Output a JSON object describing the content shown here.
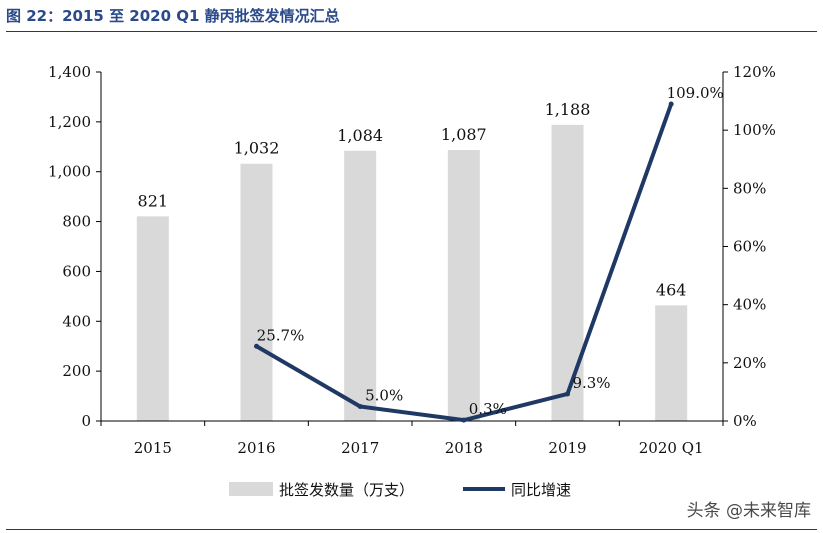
{
  "caption": "图 22：2015 至 2020 Q1 静丙批签发情况汇总",
  "watermark": "头条 @未来智库",
  "colors": {
    "bar": "#d9d9d9",
    "line": "#1f3864",
    "caption": "#2a4a8a"
  },
  "chart_data": {
    "type": "bar",
    "categories": [
      "2015",
      "2016",
      "2017",
      "2018",
      "2019",
      "2020 Q1"
    ],
    "series": [
      {
        "name": "批签发数量（万支）",
        "type": "bar",
        "axis": "left",
        "values": [
          821,
          1032,
          1084,
          1087,
          1188,
          464
        ],
        "labels": [
          "821",
          "1,032",
          "1,084",
          "1,087",
          "1,188",
          "464"
        ]
      },
      {
        "name": "同比增速",
        "type": "line",
        "axis": "right",
        "values": [
          null,
          25.7,
          5.0,
          0.3,
          9.3,
          109.0
        ],
        "labels": [
          "",
          "25.7%",
          "5.0%",
          "0.3%",
          "9.3%",
          "109.0%"
        ]
      }
    ],
    "y_left": {
      "range": [
        0,
        1400
      ],
      "ticks": [
        0,
        200,
        400,
        600,
        800,
        1000,
        1200,
        1400
      ],
      "tick_labels": [
        "0",
        "200",
        "400",
        "600",
        "800",
        "1,000",
        "1,200",
        "1,400"
      ]
    },
    "y_right": {
      "range": [
        0,
        120
      ],
      "ticks": [
        0,
        20,
        40,
        60,
        80,
        100,
        120
      ],
      "tick_labels": [
        "0%",
        "20%",
        "40%",
        "60%",
        "80%",
        "100%",
        "120%"
      ]
    },
    "grid": false,
    "legend_position": "bottom"
  }
}
